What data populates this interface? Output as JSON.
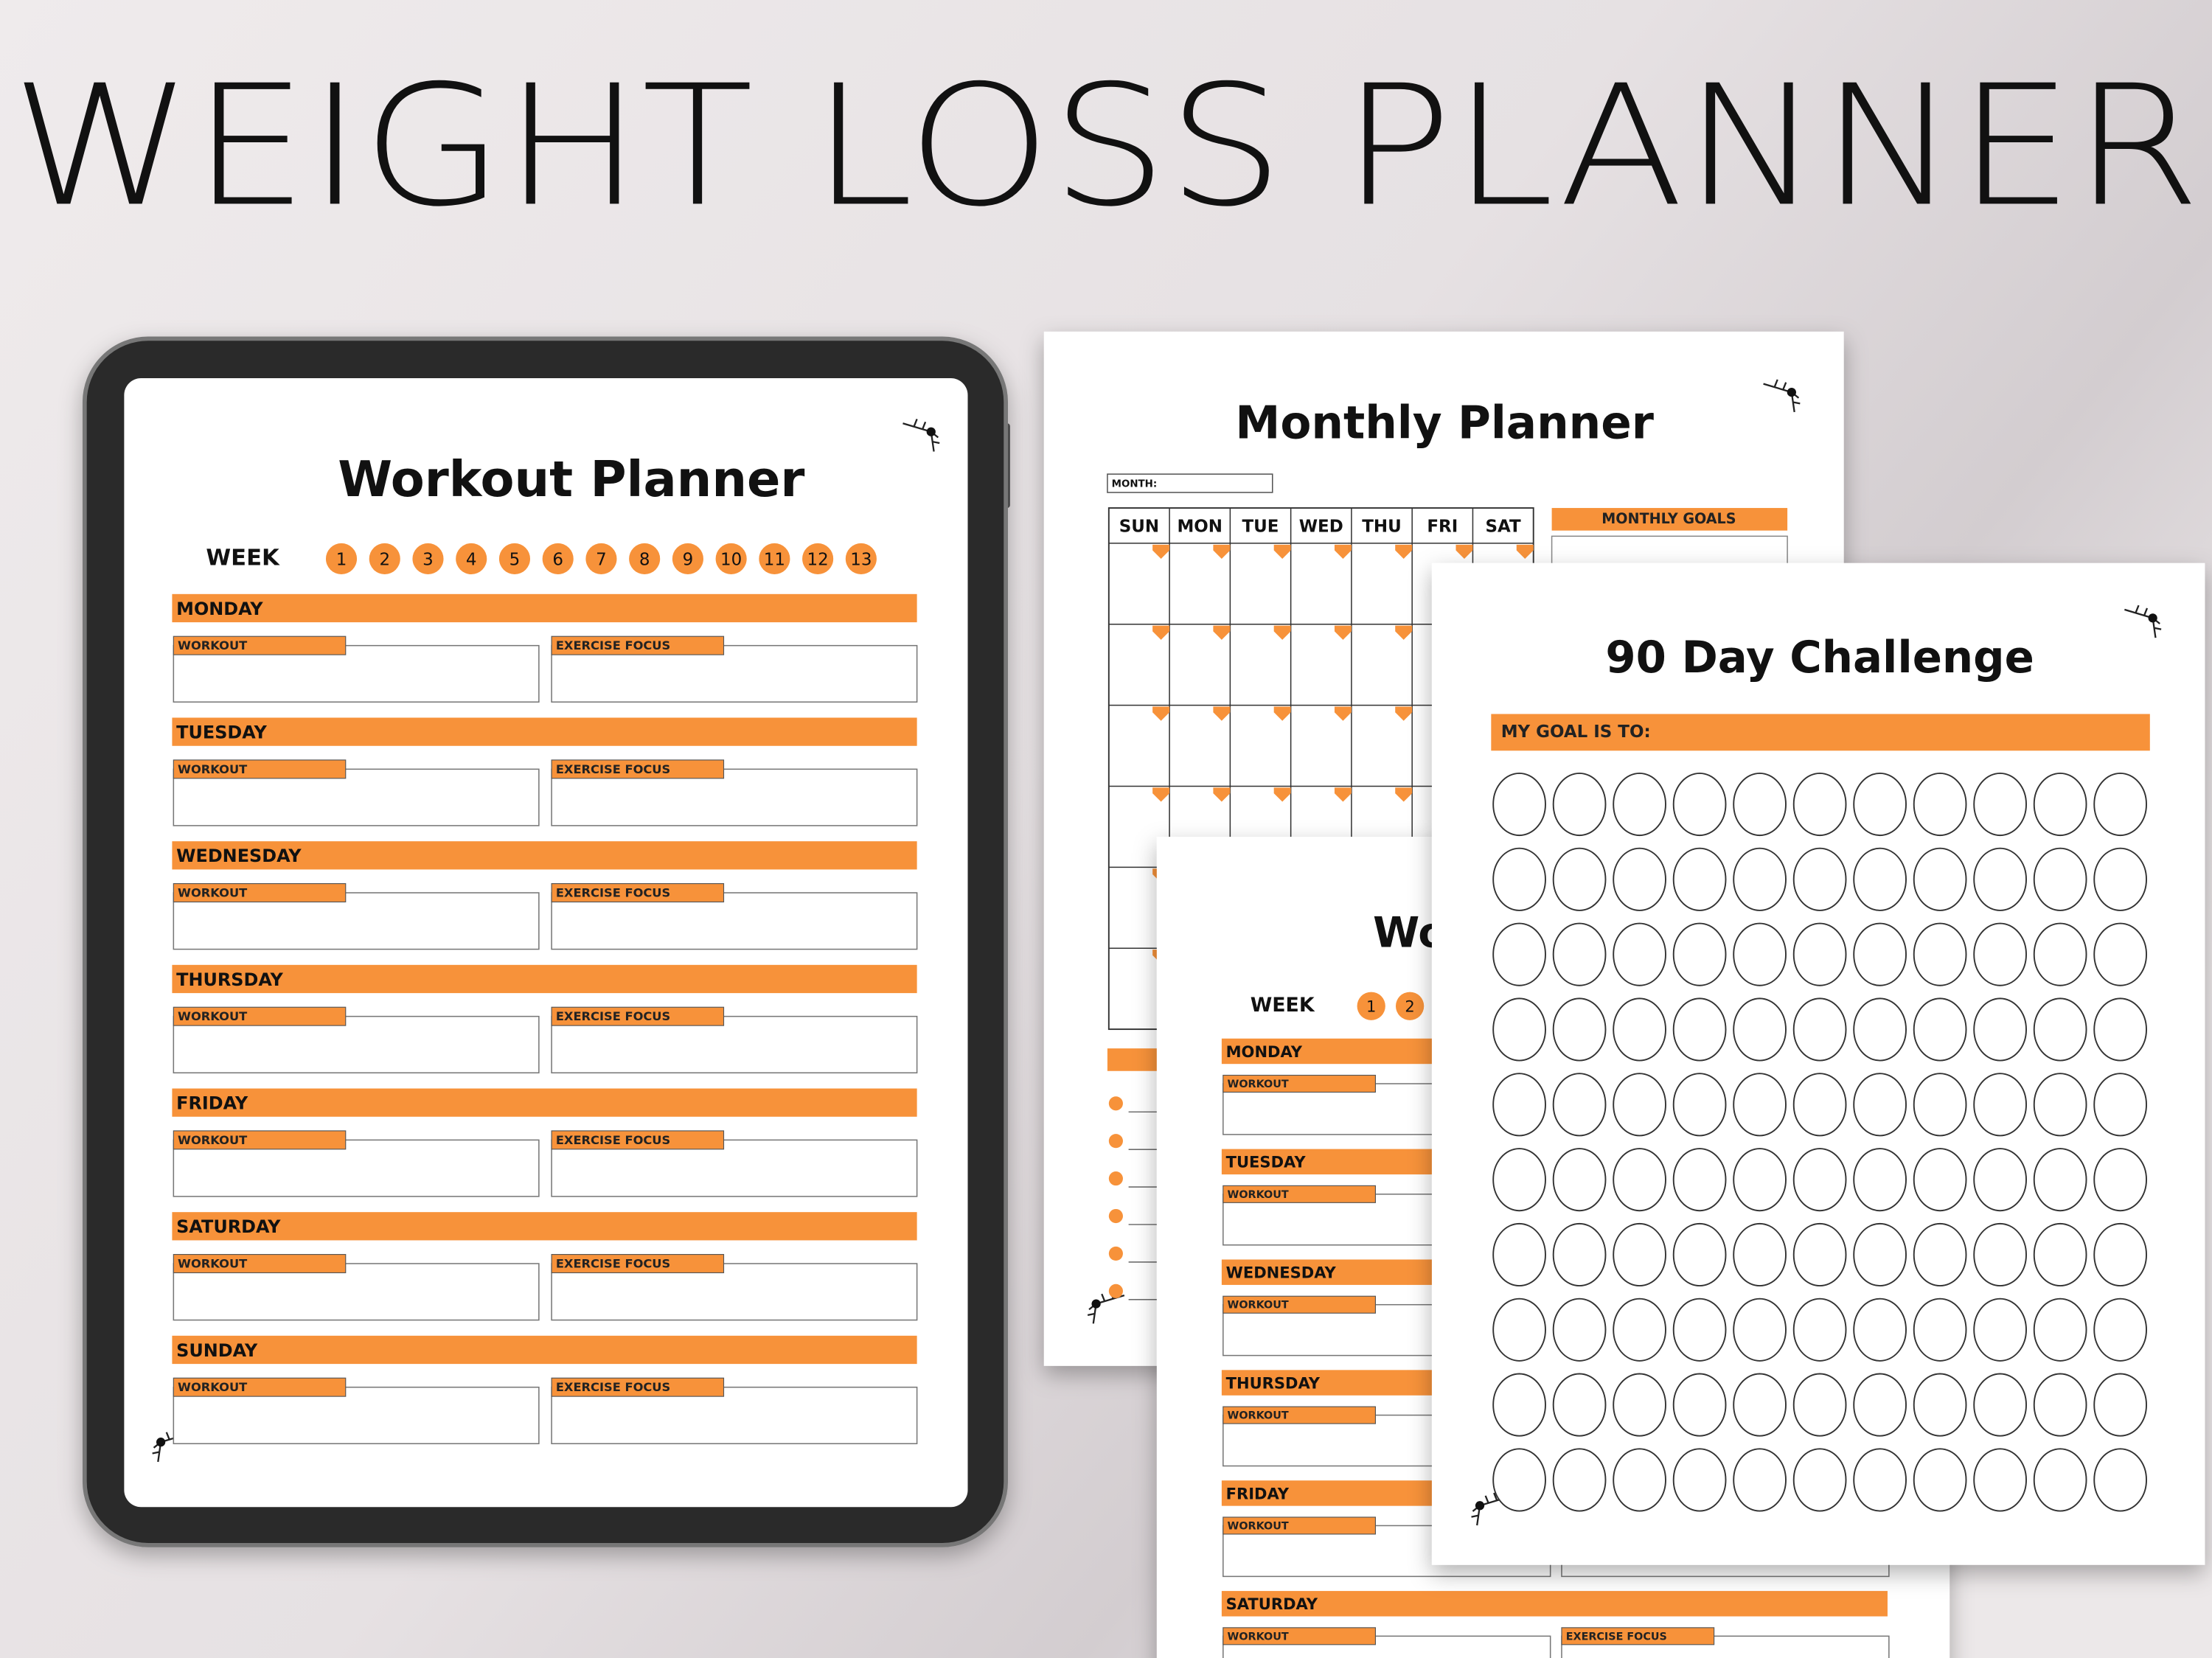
{
  "header": {
    "title": "WEIGHT LOSS PLANNER"
  },
  "workout_planner": {
    "title": "Workout Planner",
    "week_label": "WEEK",
    "weeks": [
      1,
      2,
      3,
      4,
      5,
      6,
      7,
      8,
      9,
      10,
      11,
      12,
      13
    ],
    "days": [
      "MONDAY",
      "TUESDAY",
      "WEDNESDAY",
      "THURSDAY",
      "FRIDAY",
      "SATURDAY",
      "SUNDAY"
    ],
    "fields": [
      "WORKOUT",
      "EXERCISE FOCUS"
    ]
  },
  "monthly_planner": {
    "title": "Monthly Planner",
    "month_label": "MONTH:",
    "weekdays": [
      "SUN",
      "MON",
      "TUE",
      "WED",
      "THU",
      "FRI",
      "SAT"
    ],
    "goals_label": "MONTHLY GOALS"
  },
  "challenge": {
    "title": "90 Day Challenge",
    "goal_label": "MY GOAL IS TO:"
  }
}
